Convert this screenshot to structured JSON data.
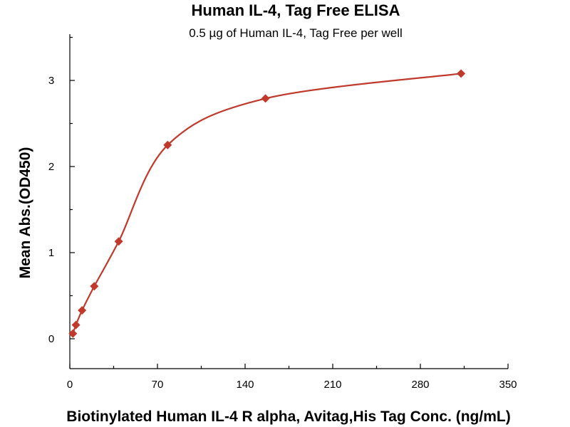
{
  "chart_data": {
    "type": "scatter",
    "title": "Human IL-4, Tag Free ELISA",
    "subtitle": "0.5 µg of Human IL-4, Tag Free per well",
    "xlabel": "Biotinylated Human IL-4 R alpha, Avitag,His Tag Conc. (ng/mL)",
    "ylabel": "Mean Abs.(OD450)",
    "xlim": [
      0,
      350
    ],
    "ylim": [
      -0.3,
      3.5
    ],
    "x_ticks": [
      0,
      70,
      140,
      210,
      280,
      350
    ],
    "y_ticks": [
      0,
      1,
      2,
      3
    ],
    "grid": false,
    "color": "#c0392b",
    "series": [
      {
        "x": [
          2.44,
          4.88,
          9.77,
          19.53,
          39.06,
          78.13,
          156.25,
          312.5
        ],
        "y": [
          0.06,
          0.16,
          0.33,
          0.61,
          1.13,
          2.25,
          2.79,
          3.08
        ],
        "fit": "sigmoidal",
        "marker": "diamond"
      }
    ]
  }
}
